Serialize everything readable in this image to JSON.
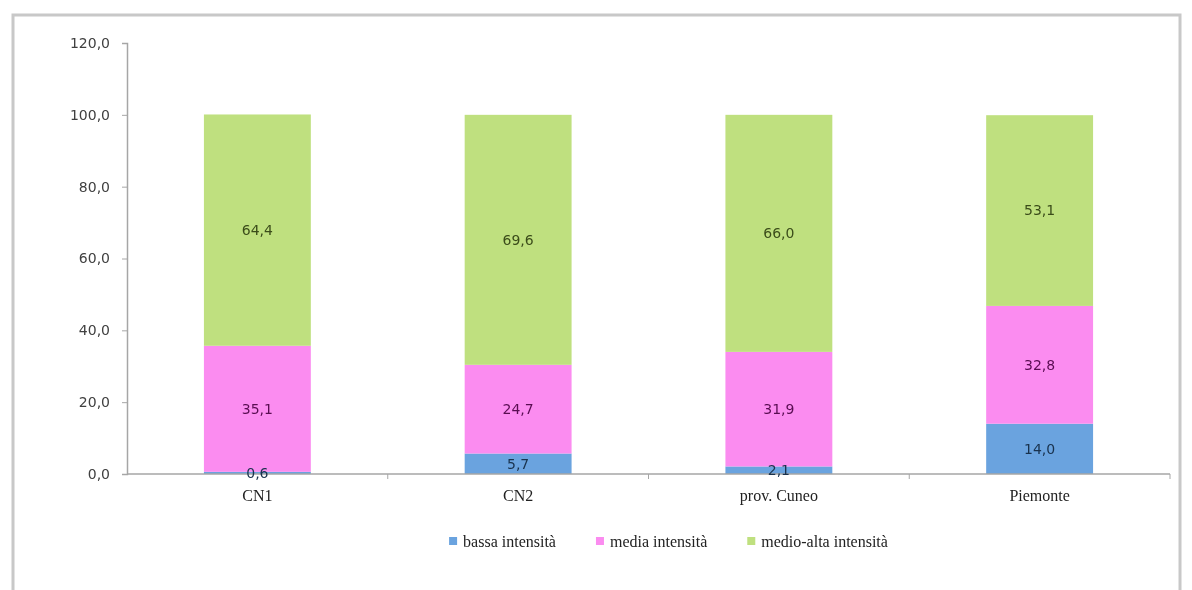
{
  "chart_data": {
    "type": "bar",
    "stacked": true,
    "categories": [
      "CN1",
      "CN2",
      "prov. Cuneo",
      "Piemonte"
    ],
    "series": [
      {
        "name": "bassa intensità",
        "color": "#6aa3df",
        "values": [
          0.6,
          5.7,
          2.1,
          14.0
        ],
        "value_labels": [
          "0,6",
          "5,7",
          "2,1",
          "14,0"
        ]
      },
      {
        "name": "media intensità",
        "color": "#fb8cf0",
        "values": [
          35.1,
          24.7,
          31.9,
          32.8
        ],
        "value_labels": [
          "35,1",
          "24,7",
          "31,9",
          "32,8"
        ]
      },
      {
        "name": "medio-alta intensità",
        "color": "#bfe07f",
        "values": [
          64.4,
          69.6,
          66.0,
          53.1
        ],
        "value_labels": [
          "64,4",
          "69,6",
          "66,0",
          "53,1"
        ]
      }
    ],
    "ylim": [
      0,
      120
    ],
    "yticks": [
      {
        "value": 0,
        "label": "0,0"
      },
      {
        "value": 20,
        "label": "20,0"
      },
      {
        "value": 40,
        "label": "40,0"
      },
      {
        "value": 60,
        "label": "60,0"
      },
      {
        "value": 80,
        "label": "80,0"
      },
      {
        "value": 100,
        "label": "100,0"
      },
      {
        "value": 120,
        "label": "120,0"
      }
    ],
    "legend": "bottom"
  }
}
